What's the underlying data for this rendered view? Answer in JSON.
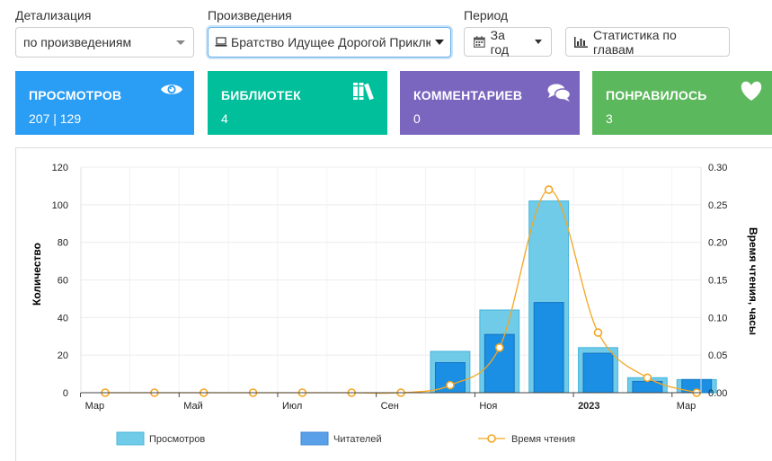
{
  "filters": {
    "detail": {
      "label": "Детализация",
      "value": "по произведениям"
    },
    "work": {
      "label": "Произведения",
      "value": "Братство Идущее Дорогой Приклю"
    },
    "period": {
      "label": "Период",
      "value": "За год"
    },
    "chapters_button": "Статистика по главам"
  },
  "stats": [
    {
      "title": "ПРОСМОТРОВ",
      "value": "207 | 129",
      "color": "#2a9df4",
      "icon": "eye-icon"
    },
    {
      "title": "БИБЛИОТЕК",
      "value": "4",
      "color": "#00bf9a",
      "icon": "books-icon"
    },
    {
      "title": "КОММЕНТАРИЕВ",
      "value": "0",
      "color": "#7b66bf",
      "icon": "comments-icon"
    },
    {
      "title": "ПОНРАВИЛОСЬ",
      "value": "3",
      "color": "#5cb85c",
      "icon": "heart-icon"
    }
  ],
  "chart_data": {
    "type": "bar",
    "x": [
      "2022-03",
      "2022-04",
      "2022-05",
      "2022-06",
      "2022-07",
      "2022-08",
      "2022-09",
      "2022-10",
      "2022-11",
      "2022-12",
      "2023-01",
      "2023-02",
      "2023-03"
    ],
    "x_tick_labels": [
      "Мар",
      "Май",
      "Июл",
      "Сен",
      "Ноя",
      "2023",
      "Мар"
    ],
    "x_tick_positions": [
      "2022-03",
      "2022-05",
      "2022-07",
      "2022-09",
      "2022-11",
      "2023-01",
      "2023-03"
    ],
    "series": [
      {
        "name": "Просмотров",
        "type": "bar",
        "axis": "left",
        "color": "#6fcbe8",
        "values": [
          0,
          0,
          0,
          0,
          0,
          0,
          0,
          22,
          44,
          102,
          24,
          8,
          7
        ]
      },
      {
        "name": "Читателей",
        "type": "bar",
        "axis": "left",
        "color": "#1a8fe3",
        "values": [
          0,
          0,
          0,
          0,
          0,
          0,
          0,
          16,
          31,
          48,
          21,
          6,
          7
        ]
      },
      {
        "name": "Время чтения",
        "type": "line",
        "axis": "right",
        "color": "#f5a623",
        "values": [
          0,
          0,
          0,
          0,
          0,
          0,
          0,
          0.01,
          0.06,
          0.27,
          0.08,
          0.02,
          0
        ]
      }
    ],
    "ylabel": "Количество",
    "y2label": "Время чтения, часы",
    "ylim": [
      0,
      120
    ],
    "y_ticks": [
      "0",
      "20",
      "40",
      "60",
      "80",
      "100",
      "120"
    ],
    "y2lim": [
      0,
      0.3
    ],
    "y2_ticks": [
      "0.00",
      "0.05",
      "0.10",
      "0.15",
      "0.20",
      "0.25",
      "0.30"
    ],
    "grid": true,
    "legend_position": "bottom"
  }
}
